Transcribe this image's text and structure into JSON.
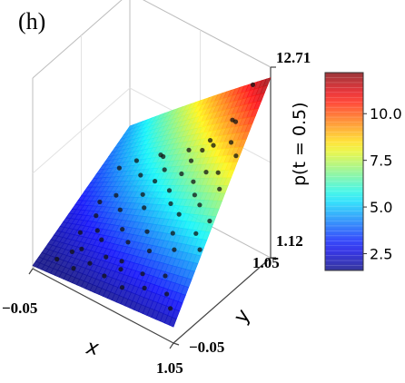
{
  "panel_label": "(h)",
  "chart_data": {
    "type": "surface3d",
    "title": "",
    "xlabel": "x",
    "ylabel": "y",
    "zlabel": "p(t = 0.5)",
    "xlim": [
      -0.05,
      1.05
    ],
    "ylim": [
      -0.05,
      1.05
    ],
    "zlim": [
      1.12,
      12.71
    ],
    "x_tick_labels": [
      "−0.05",
      "1.05"
    ],
    "y_tick_labels": [
      "−0.05",
      "1.05"
    ],
    "z_tick_labels": [
      "1.12",
      "12.71"
    ],
    "grid": true,
    "colormap": "jet",
    "colorbar": {
      "ticks": [
        2.5,
        5.0,
        7.5,
        10.0
      ],
      "tick_labels": [
        "2.5",
        "5.0",
        "7.5",
        "10.0"
      ],
      "range": [
        1.6,
        12.2
      ]
    },
    "surface": {
      "description_free": true,
      "corner_values": {
        "x0_y0": 1.3,
        "x1_y0": 2.1,
        "x0_y1": 4.6,
        "x1_y1": 12.7
      }
    },
    "scatter_points": [
      [
        0.05,
        0.08,
        1.5
      ],
      [
        0.12,
        0.15,
        1.9
      ],
      [
        0.2,
        0.05,
        1.7
      ],
      [
        0.28,
        0.12,
        2.0
      ],
      [
        0.35,
        0.2,
        2.3
      ],
      [
        0.42,
        0.08,
        2.0
      ],
      [
        0.5,
        0.15,
        2.4
      ],
      [
        0.58,
        0.05,
        2.1
      ],
      [
        0.65,
        0.18,
        2.6
      ],
      [
        0.72,
        0.1,
        2.4
      ],
      [
        0.8,
        0.22,
        2.9
      ],
      [
        0.88,
        0.12,
        2.6
      ],
      [
        0.95,
        0.06,
        2.3
      ],
      [
        0.08,
        0.3,
        2.2
      ],
      [
        0.18,
        0.35,
        2.5
      ],
      [
        0.26,
        0.28,
        2.6
      ],
      [
        0.34,
        0.4,
        3.0
      ],
      [
        0.44,
        0.32,
        3.0
      ],
      [
        0.52,
        0.42,
        3.5
      ],
      [
        0.62,
        0.3,
        3.3
      ],
      [
        0.7,
        0.45,
        4.0
      ],
      [
        0.78,
        0.35,
        3.8
      ],
      [
        0.86,
        0.48,
        4.5
      ],
      [
        0.96,
        0.38,
        4.4
      ],
      [
        0.06,
        0.55,
        2.8
      ],
      [
        0.14,
        0.62,
        3.2
      ],
      [
        0.24,
        0.52,
        3.2
      ],
      [
        0.32,
        0.66,
        3.8
      ],
      [
        0.4,
        0.56,
        3.8
      ],
      [
        0.5,
        0.7,
        4.6
      ],
      [
        0.58,
        0.6,
        4.6
      ],
      [
        0.66,
        0.74,
        5.6
      ],
      [
        0.74,
        0.64,
        5.6
      ],
      [
        0.84,
        0.76,
        6.8
      ],
      [
        0.92,
        0.66,
        6.6
      ],
      [
        0.04,
        0.8,
        3.6
      ],
      [
        0.12,
        0.88,
        4.0
      ],
      [
        0.22,
        0.78,
        4.0
      ],
      [
        0.3,
        0.92,
        4.8
      ],
      [
        0.38,
        0.82,
        4.8
      ],
      [
        0.48,
        0.95,
        5.8
      ],
      [
        0.56,
        0.86,
        5.9
      ],
      [
        0.64,
        0.96,
        7.0
      ],
      [
        0.72,
        0.88,
        7.4
      ],
      [
        0.8,
        0.98,
        8.8
      ],
      [
        0.88,
        0.9,
        9.4
      ],
      [
        0.96,
        0.98,
        11.6
      ],
      [
        0.1,
        0.45,
        2.6
      ],
      [
        0.46,
        0.22,
        2.4
      ],
      [
        0.68,
        0.55,
        4.6
      ],
      [
        0.9,
        0.82,
        8.6
      ],
      [
        0.36,
        0.74,
        4.4
      ],
      [
        0.16,
        0.2,
        2.0
      ],
      [
        0.82,
        0.58,
        5.6
      ],
      [
        0.54,
        0.78,
        5.4
      ],
      [
        0.94,
        0.52,
        5.4
      ],
      [
        0.26,
        0.95,
        4.6
      ],
      [
        0.62,
        0.9,
        6.6
      ],
      [
        0.76,
        0.74,
        6.6
      ],
      [
        0.98,
        0.76,
        8.4
      ]
    ]
  }
}
